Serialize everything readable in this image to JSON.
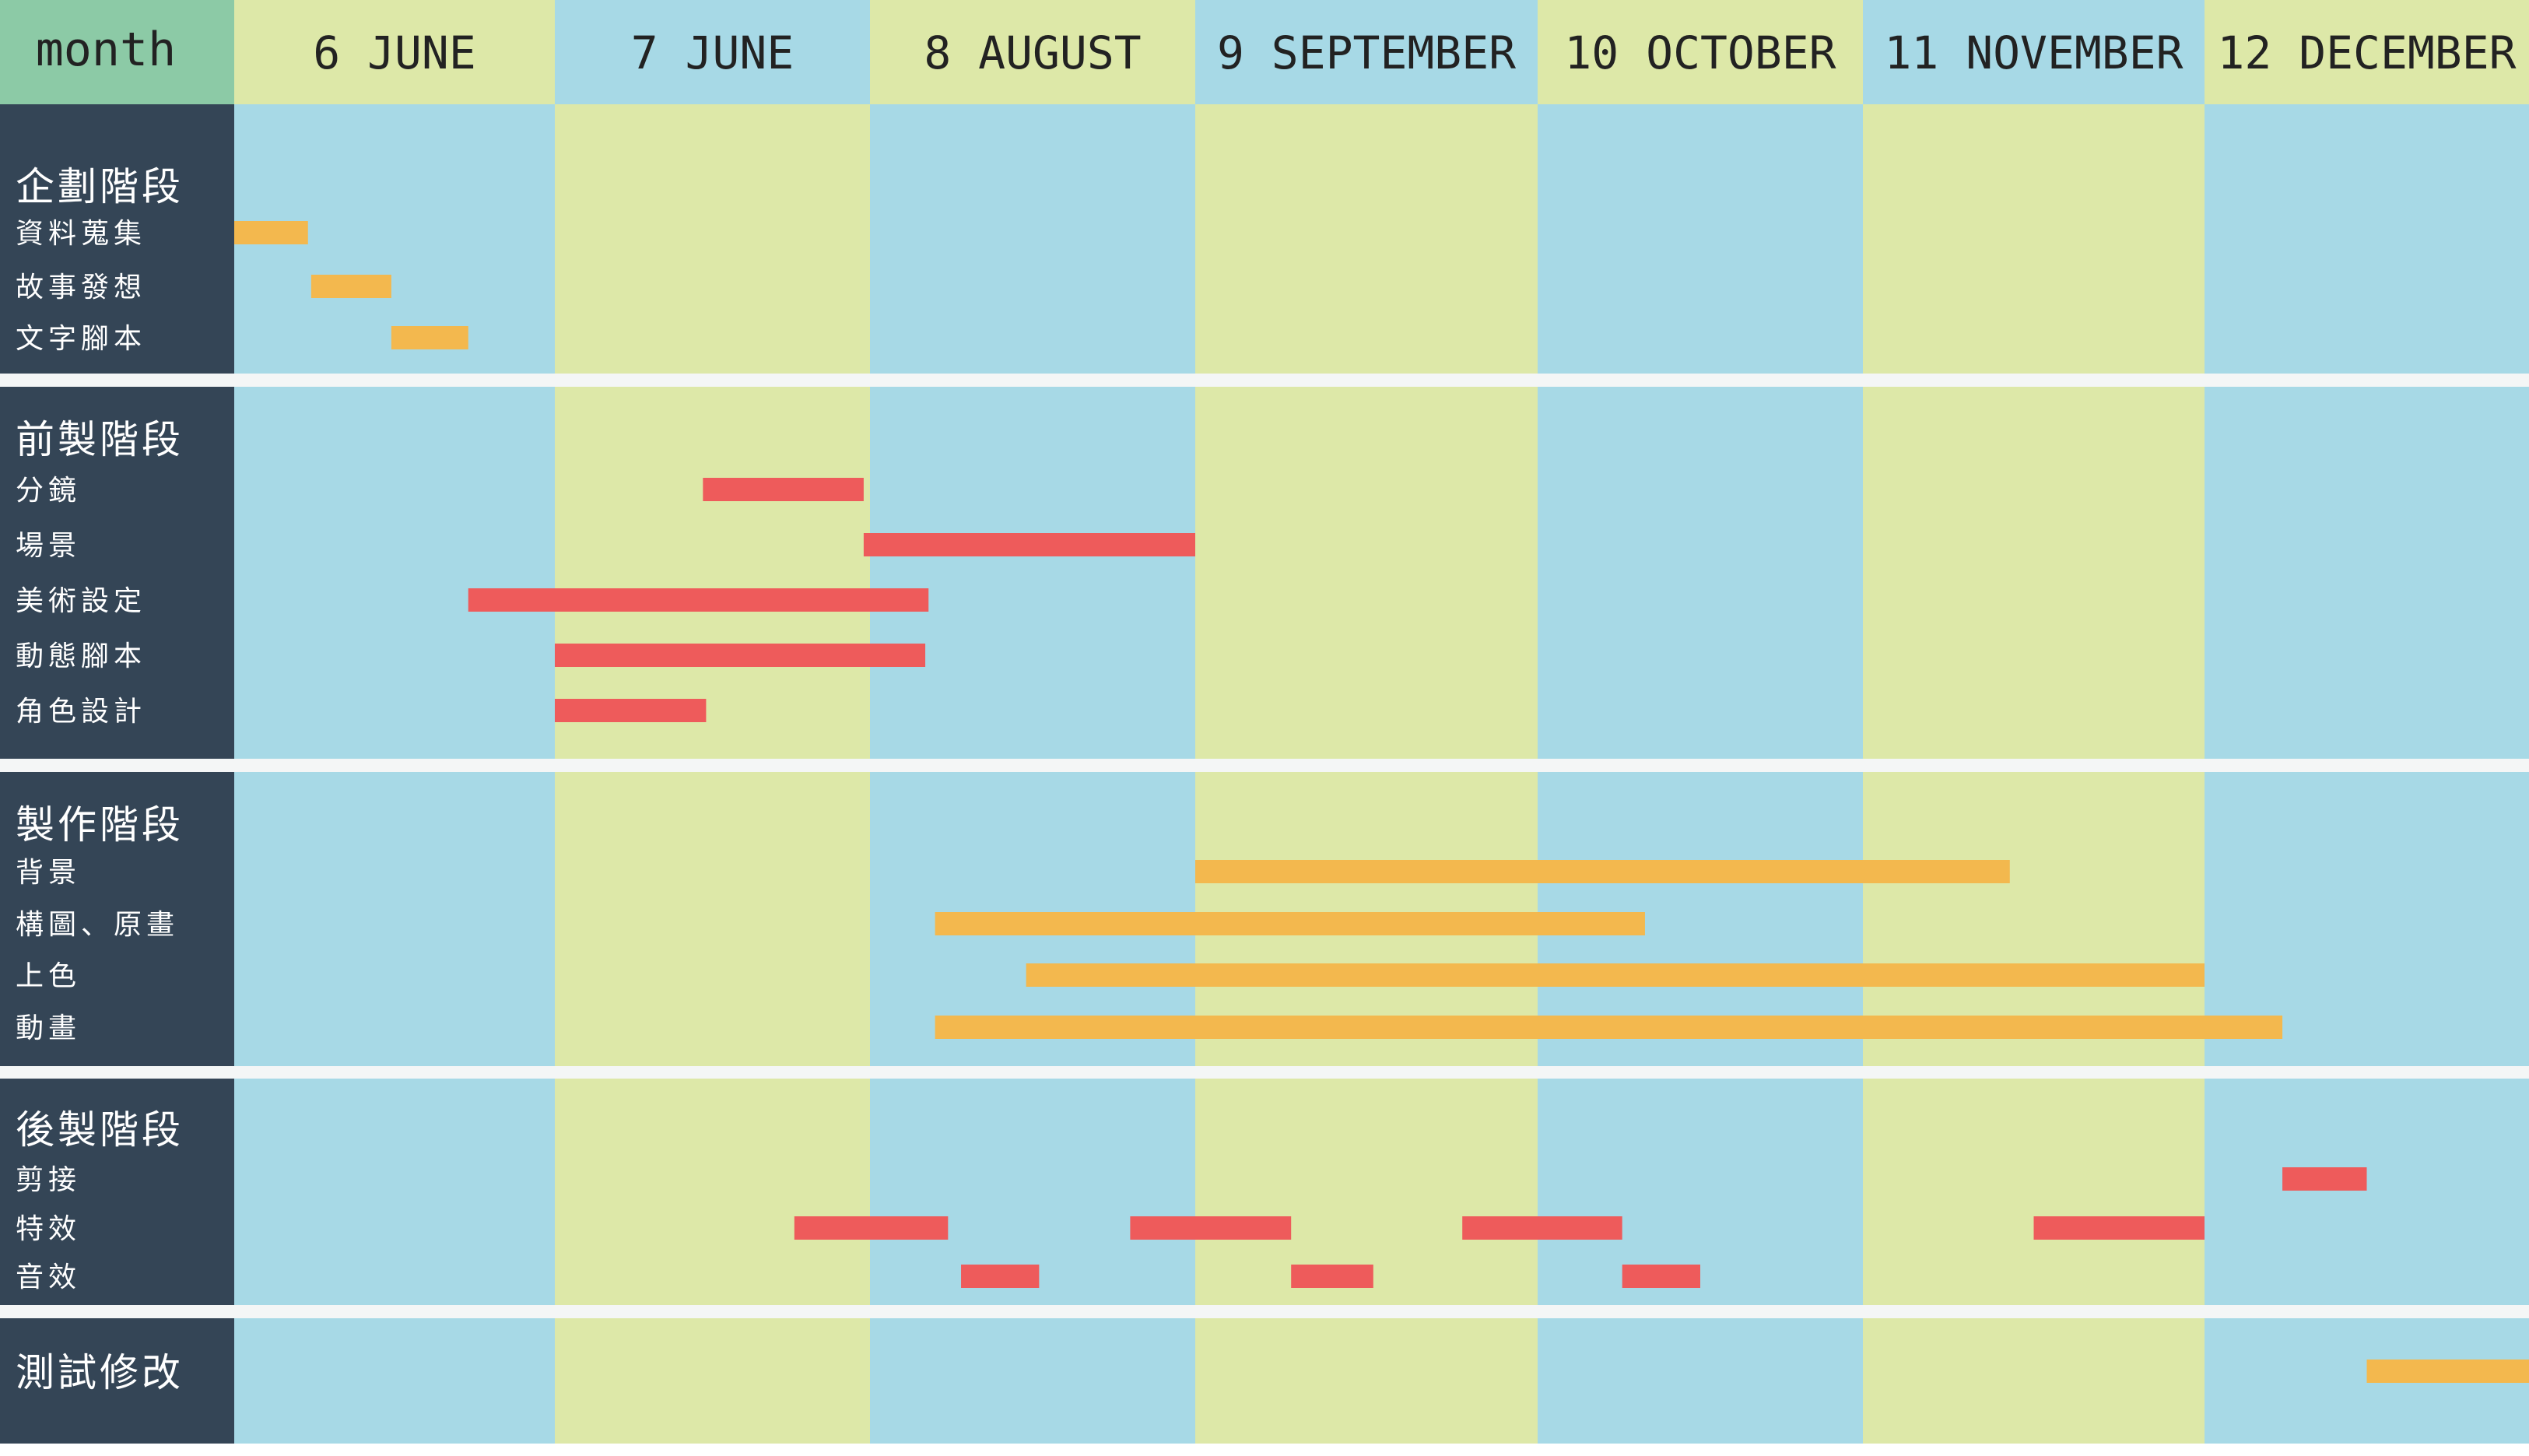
{
  "chart_data": {
    "type": "gantt",
    "corner_label": "month",
    "months": [
      {
        "label": "6 JUNE",
        "start": 0.0,
        "end": 1.0
      },
      {
        "label": "7 JUNE",
        "start": 1.0,
        "end": 2.0
      },
      {
        "label": "8 AUGUST",
        "start": 2.0,
        "end": 3.0
      },
      {
        "label": "9 SEPTEMBER",
        "start": 3.0,
        "end": 4.0
      },
      {
        "label": "10 OCTOBER",
        "start": 4.0,
        "end": 5.0
      },
      {
        "label": "11 NOVEMBER",
        "start": 5.0,
        "end": 6.0
      },
      {
        "label": "12 DECEMBER",
        "start": 6.0,
        "end": 7.0
      }
    ],
    "colors": {
      "sidebar": "#344556",
      "header_corner": "#8ccaa6",
      "column_blue": "#a7d9e6",
      "column_green": "#dde8a8",
      "separator": "#f4f6f6",
      "bar_orange": "#f3b84e",
      "bar_red": "#ee5b5b",
      "header_text": "#222222",
      "sidebar_text": "#ffffff"
    },
    "phases": [
      {
        "title": "企劃階段",
        "color": "bar_orange",
        "tasks": [
          {
            "name": "資料蒐集",
            "segments": [
              [
                0.0,
                0.23
              ]
            ]
          },
          {
            "name": "故事發想",
            "segments": [
              [
                0.24,
                0.49
              ]
            ]
          },
          {
            "name": "文字腳本",
            "segments": [
              [
                0.49,
                0.73
              ]
            ]
          }
        ]
      },
      {
        "title": "前製階段",
        "color": "bar_red",
        "tasks": [
          {
            "name": "分鏡",
            "segments": [
              [
                1.47,
                1.98
              ]
            ]
          },
          {
            "name": "場景",
            "segments": [
              [
                1.98,
                3.0
              ]
            ]
          },
          {
            "name": "美術設定",
            "segments": [
              [
                0.73,
                2.18
              ]
            ]
          },
          {
            "name": "動態腳本",
            "segments": [
              [
                1.0,
                2.17
              ]
            ]
          },
          {
            "name": "角色設計",
            "segments": [
              [
                1.0,
                1.48
              ]
            ]
          }
        ]
      },
      {
        "title": "製作階段",
        "color": "bar_orange",
        "tasks": [
          {
            "name": "背景",
            "segments": [
              [
                3.0,
                5.43
              ]
            ]
          },
          {
            "name": "構圖、原畫",
            "segments": [
              [
                2.2,
                4.33
              ]
            ]
          },
          {
            "name": "上色",
            "segments": [
              [
                2.48,
                6.0
              ]
            ]
          },
          {
            "name": "動畫",
            "segments": [
              [
                2.2,
                6.24
              ]
            ]
          }
        ]
      },
      {
        "title": "後製階段",
        "color": "bar_red",
        "tasks": [
          {
            "name": "剪接",
            "segments": [
              [
                6.24,
                6.5
              ]
            ]
          },
          {
            "name": "特效",
            "segments": [
              [
                1.76,
                2.24
              ],
              [
                2.8,
                3.28
              ],
              [
                3.78,
                4.26
              ],
              [
                5.5,
                6.0
              ]
            ]
          },
          {
            "name": "音效",
            "segments": [
              [
                2.28,
                2.52
              ],
              [
                3.28,
                3.52
              ],
              [
                4.26,
                4.5
              ]
            ]
          }
        ]
      },
      {
        "title": "測試修改",
        "color": "bar_orange",
        "tasks": [
          {
            "name": "",
            "segments": [
              [
                6.5,
                7.0
              ]
            ]
          }
        ]
      }
    ]
  }
}
